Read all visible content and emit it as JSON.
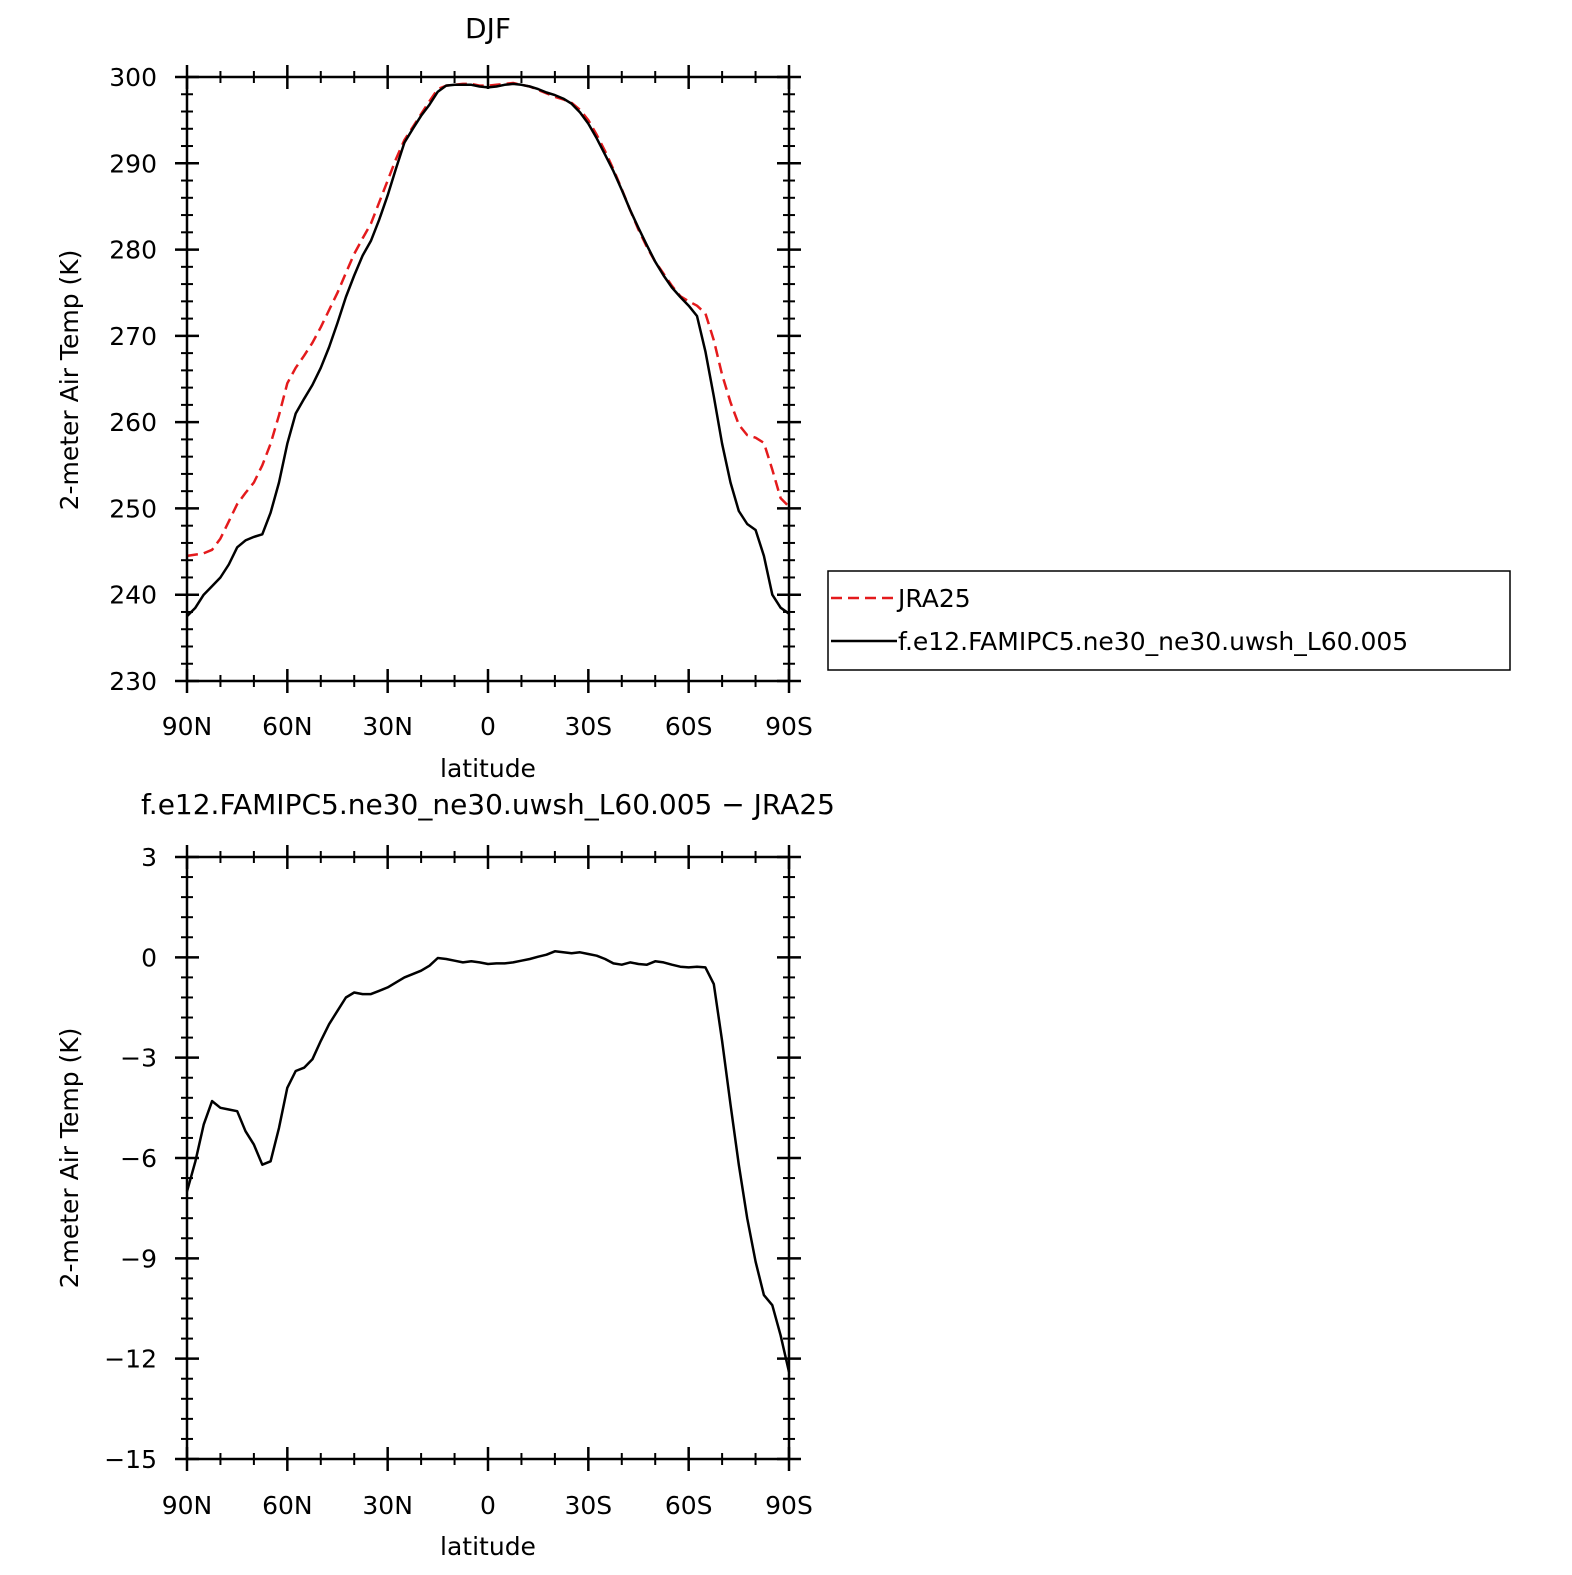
{
  "chart_data": [
    {
      "type": "line",
      "title": "DJF",
      "xlabel": "latitude",
      "ylabel": "2-meter Air Temp (K)",
      "xlim": [
        90,
        -90
      ],
      "ylim": [
        230,
        300
      ],
      "xticks": [
        {
          "value": 90,
          "label": "90N"
        },
        {
          "value": 60,
          "label": "60N"
        },
        {
          "value": 30,
          "label": "30N"
        },
        {
          "value": 0,
          "label": "0"
        },
        {
          "value": -30,
          "label": "30S"
        },
        {
          "value": -60,
          "label": "60S"
        },
        {
          "value": -90,
          "label": "90S"
        }
      ],
      "yticks": [
        {
          "value": 300,
          "label": "300"
        },
        {
          "value": 290,
          "label": "290"
        },
        {
          "value": 280,
          "label": "280"
        },
        {
          "value": 270,
          "label": "270"
        },
        {
          "value": 260,
          "label": "260"
        },
        {
          "value": 250,
          "label": "250"
        },
        {
          "value": 240,
          "label": "240"
        },
        {
          "value": 230,
          "label": "230"
        }
      ],
      "legend": "right",
      "grid": false,
      "series": [
        {
          "name": "JRA25",
          "color": "#e41a1c",
          "dash": true,
          "x": [
            90,
            85,
            82.5,
            80,
            77.5,
            75,
            72.5,
            70,
            67.5,
            65,
            62.5,
            60,
            57.5,
            55,
            52.5,
            50,
            47.5,
            45,
            42.5,
            40,
            37.5,
            35,
            32.5,
            30,
            27.5,
            25,
            22.5,
            20,
            17.5,
            15,
            12.5,
            10,
            7.5,
            5,
            2.5,
            0,
            -2.5,
            -5,
            -7.5,
            -10,
            -12.5,
            -15,
            -17.5,
            -20,
            -22.5,
            -25,
            -27.5,
            -30,
            -32.5,
            -35,
            -37.5,
            -40,
            -42.5,
            -45,
            -47.5,
            -50,
            -52.5,
            -55,
            -57.5,
            -60,
            -62.5,
            -65,
            -67.5,
            -70,
            -72.5,
            -75,
            -77.5,
            -80,
            -82.5,
            -85,
            -87.5,
            -90
          ],
          "y": [
            244.5,
            244.8,
            245.2,
            246.5,
            248.5,
            250.5,
            251.8,
            253.0,
            255.0,
            257.5,
            260.8,
            264.5,
            266.3,
            267.7,
            269.2,
            271.0,
            273.0,
            275.0,
            277.3,
            279.5,
            281.3,
            283.0,
            285.5,
            288.0,
            290.5,
            292.7,
            294.2,
            295.7,
            297.2,
            298.6,
            299.0,
            299.1,
            299.2,
            299.2,
            299.0,
            299.0,
            299.1,
            299.2,
            299.3,
            299.1,
            298.9,
            298.5,
            298.1,
            297.7,
            297.4,
            297.0,
            296.2,
            295.0,
            293.3,
            291.4,
            289.3,
            287.0,
            284.6,
            282.3,
            280.3,
            278.6,
            277.2,
            275.8,
            274.6,
            274.0,
            273.5,
            272.6,
            269.5,
            265.5,
            262.3,
            259.7,
            258.5,
            258.2,
            257.6,
            254.5,
            251.2,
            250.2
          ]
        },
        {
          "name": "f.e12.FAMIPC5.ne30_ne30.uwsh_L60.005",
          "color": "#000000",
          "dash": false,
          "x": [
            90,
            87.5,
            85,
            82.5,
            80,
            77.5,
            75,
            72.5,
            70,
            67.5,
            65,
            62.5,
            60,
            57.5,
            55,
            52.5,
            50,
            47.5,
            45,
            42.5,
            40,
            37.5,
            35,
            32.5,
            30,
            27.5,
            25,
            22.5,
            20,
            17.5,
            15,
            12.5,
            10,
            7.5,
            5,
            2.5,
            0,
            -2.5,
            -5,
            -7.5,
            -10,
            -12.5,
            -15,
            -17.5,
            -20,
            -22.5,
            -25,
            -27.5,
            -30,
            -32.5,
            -35,
            -37.5,
            -40,
            -42.5,
            -45,
            -47.5,
            -50,
            -52.5,
            -55,
            -57.5,
            -60,
            -62.5,
            -65,
            -67.5,
            -70,
            -72.5,
            -75,
            -77.5,
            -80,
            -82.5,
            -85,
            -87.5,
            -90
          ],
          "y": [
            237.5,
            238.5,
            240.0,
            241.0,
            242.0,
            243.5,
            245.5,
            246.3,
            246.7,
            247.0,
            249.5,
            253.0,
            257.5,
            261.0,
            262.7,
            264.3,
            266.3,
            268.7,
            271.5,
            274.5,
            277.0,
            279.3,
            281.0,
            283.5,
            286.3,
            289.4,
            292.4,
            294.0,
            295.5,
            296.8,
            298.3,
            299.0,
            299.1,
            299.1,
            299.1,
            298.9,
            298.8,
            298.9,
            299.1,
            299.2,
            299.1,
            298.9,
            298.6,
            298.2,
            297.9,
            297.5,
            296.9,
            295.9,
            294.6,
            292.9,
            291.0,
            289.1,
            286.9,
            284.6,
            282.5,
            280.5,
            278.6,
            277.0,
            275.6,
            274.5,
            273.5,
            272.3,
            268.2,
            263.0,
            257.5,
            253.0,
            249.7,
            248.2,
            247.5,
            244.5,
            240.0,
            238.5,
            237.8
          ]
        }
      ]
    },
    {
      "type": "line",
      "title": "f.e12.FAMIPC5.ne30_ne30.uwsh_L60.005 - JRA25",
      "xlabel": "latitude",
      "ylabel": "2-meter Air Temp (K)",
      "xlim": [
        90,
        -90
      ],
      "ylim": [
        -15,
        3
      ],
      "xticks": [
        {
          "value": 90,
          "label": "90N"
        },
        {
          "value": 60,
          "label": "60N"
        },
        {
          "value": 30,
          "label": "30N"
        },
        {
          "value": 0,
          "label": "0"
        },
        {
          "value": -30,
          "label": "30S"
        },
        {
          "value": -60,
          "label": "60S"
        },
        {
          "value": -90,
          "label": "90S"
        }
      ],
      "yticks": [
        {
          "value": 3,
          "label": "3"
        },
        {
          "value": 0,
          "label": "0"
        },
        {
          "value": -3,
          "label": "-3"
        },
        {
          "value": -6,
          "label": "-6"
        },
        {
          "value": -9,
          "label": "-9"
        },
        {
          "value": -12,
          "label": "-12"
        },
        {
          "value": -15,
          "label": "-15"
        }
      ],
      "grid": false,
      "series": [
        {
          "color": "#000000",
          "dash": false,
          "x": [
            90,
            87.5,
            85,
            82.5,
            80,
            77.5,
            75,
            72.5,
            70,
            67.5,
            65,
            62.5,
            60,
            57.5,
            55,
            52.5,
            50,
            47.5,
            45,
            42.5,
            40,
            37.5,
            35,
            32.5,
            30,
            27.5,
            25,
            22.5,
            20,
            17.5,
            15,
            12.5,
            10,
            7.5,
            5,
            2.5,
            0,
            -2.5,
            -5,
            -7.5,
            -10,
            -12.5,
            -15,
            -17.5,
            -20,
            -22.5,
            -25,
            -27.5,
            -30,
            -32.5,
            -35,
            -37.5,
            -40,
            -42.5,
            -45,
            -47.5,
            -50,
            -52.5,
            -55,
            -57.5,
            -60,
            -62.5,
            -65,
            -67.5,
            -70,
            -72.5,
            -75,
            -77.5,
            -80,
            -82.5,
            -85,
            -87.5,
            -90
          ],
          "y": [
            -7.0,
            -6.1,
            -5.0,
            -4.3,
            -4.5,
            -4.55,
            -4.6,
            -5.2,
            -5.6,
            -6.2,
            -6.1,
            -5.1,
            -3.9,
            -3.4,
            -3.3,
            -3.05,
            -2.5,
            -2.0,
            -1.6,
            -1.2,
            -1.05,
            -1.1,
            -1.1,
            -1.0,
            -0.9,
            -0.75,
            -0.6,
            -0.5,
            -0.4,
            -0.25,
            -0.02,
            -0.05,
            -0.1,
            -0.15,
            -0.12,
            -0.15,
            -0.2,
            -0.18,
            -0.18,
            -0.15,
            -0.1,
            -0.05,
            0.02,
            0.08,
            0.18,
            0.15,
            0.12,
            0.15,
            0.1,
            0.05,
            -0.05,
            -0.18,
            -0.22,
            -0.15,
            -0.2,
            -0.22,
            -0.12,
            -0.15,
            -0.22,
            -0.28,
            -0.3,
            -0.28,
            -0.3,
            -0.8,
            -2.5,
            -4.4,
            -6.2,
            -7.8,
            -9.1,
            -10.1,
            -10.4,
            -11.3,
            -12.4
          ]
        }
      ]
    }
  ]
}
